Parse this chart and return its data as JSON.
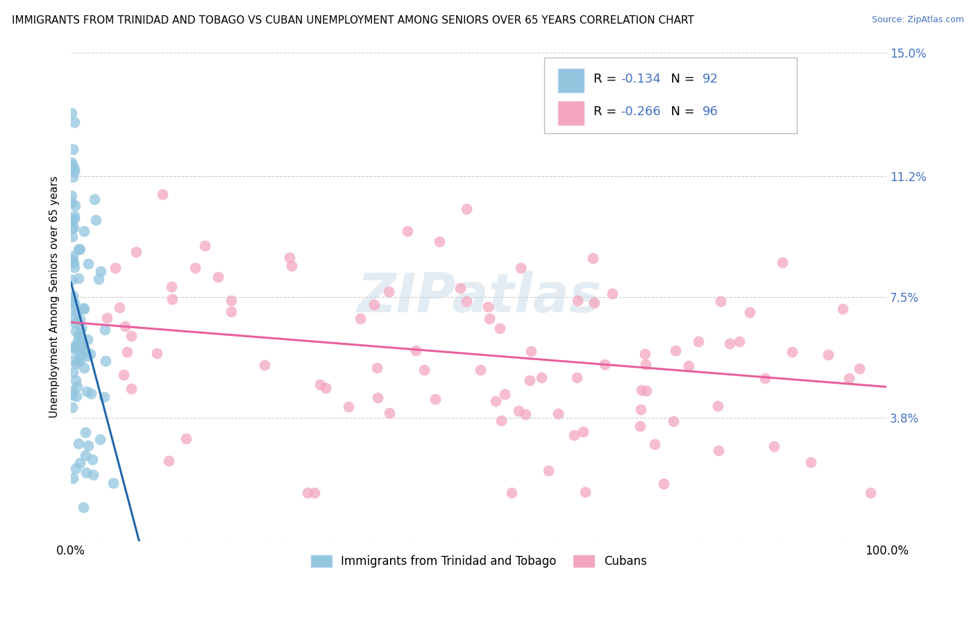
{
  "title": "IMMIGRANTS FROM TRINIDAD AND TOBAGO VS CUBAN UNEMPLOYMENT AMONG SENIORS OVER 65 YEARS CORRELATION CHART",
  "source": "Source: ZipAtlas.com",
  "ylabel": "Unemployment Among Seniors over 65 years",
  "legend_label1": "Immigrants from Trinidad and Tobago",
  "legend_label2": "Cubans",
  "R1": -0.134,
  "N1": 92,
  "R2": -0.266,
  "N2": 96,
  "color1": "#92c5de",
  "color2": "#f4a6c0",
  "line1_color": "#2166ac",
  "line2_color": "#e8609a",
  "line1_dash_color": "#aac8e0",
  "background_color": "#ffffff",
  "grid_color": "#cccccc",
  "watermark": "ZIPatlas",
  "xlim": [
    0.0,
    1.0
  ],
  "ylim": [
    0.0,
    0.15
  ],
  "yticks": [
    0.0,
    0.038,
    0.075,
    0.112,
    0.15
  ],
  "ytick_labels": [
    "",
    "3.8%",
    "7.5%",
    "11.2%",
    "15.0%"
  ],
  "xtick_labels": [
    "0.0%",
    "100.0%"
  ],
  "title_fontsize": 11,
  "source_fontsize": 9,
  "tick_fontsize": 12,
  "label_fontsize": 11,
  "legend_fontsize": 13,
  "right_tick_color": "#4472c4"
}
